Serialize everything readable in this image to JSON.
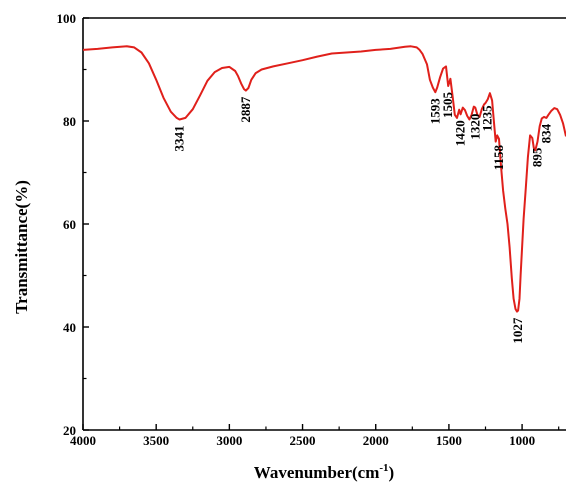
{
  "chart_data": {
    "type": "line",
    "xlabel": "Wavenumber(cm",
    "xlabel_sup": "-1",
    "xlabel_end": ")",
    "ylabel": "Transmittance(%)",
    "xlim": [
      4000,
      700
    ],
    "ylim": [
      20,
      100
    ],
    "x_ticks": [
      4000,
      3500,
      3000,
      2500,
      2000,
      1500,
      1000
    ],
    "x_tick_labels": [
      "4000",
      "3500",
      "3000",
      "2500",
      "2000",
      "1500",
      "1000"
    ],
    "y_ticks": [
      20,
      40,
      60,
      80,
      100
    ],
    "y_tick_labels": [
      "20",
      "40",
      "60",
      "80",
      "100"
    ],
    "grid": false,
    "line_color": "#e0201b",
    "series": [
      {
        "x": [
          4000,
          3900,
          3800,
          3700,
          3650,
          3600,
          3550,
          3500,
          3450,
          3400,
          3360,
          3341,
          3300,
          3250,
          3200,
          3150,
          3100,
          3050,
          3000,
          2960,
          2940,
          2920,
          2900,
          2887,
          2870,
          2850,
          2820,
          2780,
          2700,
          2600,
          2500,
          2400,
          2300,
          2200,
          2100,
          2000,
          1900,
          1800,
          1760,
          1720,
          1700,
          1680,
          1650,
          1630,
          1610,
          1593,
          1580,
          1560,
          1540,
          1520,
          1505,
          1490,
          1475,
          1460,
          1445,
          1430,
          1420,
          1405,
          1390,
          1375,
          1360,
          1345,
          1330,
          1320,
          1305,
          1290,
          1275,
          1260,
          1250,
          1235,
          1220,
          1205,
          1190,
          1180,
          1170,
          1158,
          1145,
          1130,
          1115,
          1100,
          1085,
          1070,
          1058,
          1045,
          1035,
          1027,
          1018,
          1010,
          1000,
          990,
          975,
          960,
          945,
          930,
          920,
          910,
          895,
          880,
          865,
          850,
          834,
          820,
          800,
          780,
          760,
          740,
          720,
          700
        ],
        "y": [
          93.8,
          94.0,
          94.3,
          94.5,
          94.3,
          93.3,
          91.2,
          88.0,
          84.5,
          81.8,
          80.6,
          80.3,
          80.6,
          82.3,
          85.0,
          87.8,
          89.5,
          90.3,
          90.5,
          89.7,
          88.7,
          87.3,
          86.2,
          85.9,
          86.4,
          88.0,
          89.3,
          90.0,
          90.6,
          91.2,
          91.8,
          92.5,
          93.1,
          93.3,
          93.5,
          93.8,
          94.0,
          94.4,
          94.5,
          94.3,
          93.8,
          93.0,
          91.0,
          88.0,
          86.5,
          85.6,
          86.5,
          88.5,
          90.2,
          90.6,
          86.8,
          88.2,
          84.8,
          81.2,
          80.6,
          82.2,
          81.3,
          82.6,
          82.1,
          81.0,
          80.3,
          81.2,
          82.8,
          82.6,
          81.2,
          80.8,
          82.3,
          83.2,
          83.5,
          84.2,
          85.4,
          84.0,
          79.0,
          76.0,
          77.2,
          76.5,
          71.5,
          66.5,
          63.0,
          60.0,
          55.5,
          49.5,
          45.5,
          43.5,
          43.0,
          43.2,
          45.5,
          50.0,
          55.5,
          61.0,
          67.0,
          73.0,
          77.2,
          76.7,
          74.8,
          74.3,
          76.0,
          79.0,
          80.5,
          80.8,
          80.6,
          81.2,
          82.0,
          82.5,
          82.3,
          81.2,
          79.5,
          77.0
        ]
      }
    ],
    "annotations": [
      {
        "label": "3341",
        "x": 3341,
        "y": 80.3
      },
      {
        "label": "2887",
        "x": 2887,
        "y": 85.9
      },
      {
        "label": "1593",
        "x": 1593,
        "y": 85.6
      },
      {
        "label": "1505",
        "x": 1505,
        "y": 86.8
      },
      {
        "label": "1420",
        "x": 1420,
        "y": 81.3
      },
      {
        "label": "1320",
        "x": 1320,
        "y": 82.6
      },
      {
        "label": "1235",
        "x": 1235,
        "y": 84.2
      },
      {
        "label": "1158",
        "x": 1158,
        "y": 76.5
      },
      {
        "label": "1027",
        "x": 1027,
        "y": 43.0
      },
      {
        "label": "895",
        "x": 895,
        "y": 76.0
      },
      {
        "label": "834",
        "x": 834,
        "y": 80.6
      }
    ]
  }
}
